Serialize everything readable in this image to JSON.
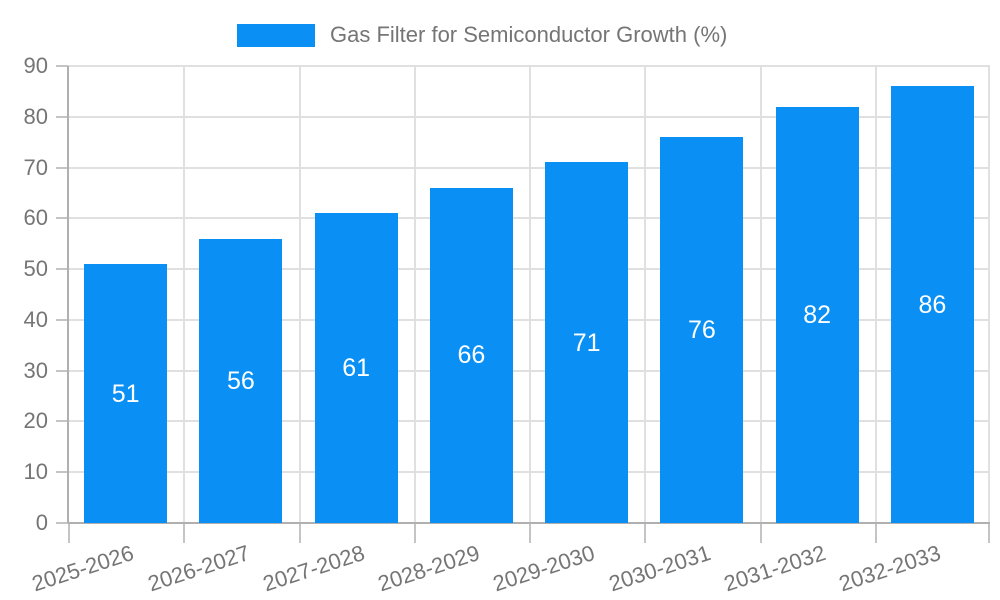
{
  "chart_data": {
    "type": "bar",
    "title": "Gas Filter for Semiconductor Growth (%)",
    "categories": [
      "2025-2026",
      "2026-2027",
      "2027-2028",
      "2028-2029",
      "2029-2030",
      "2030-2031",
      "2031-2032",
      "2032-2033"
    ],
    "values": [
      51,
      56,
      61,
      66,
      71,
      76,
      82,
      86
    ],
    "xlabel": "",
    "ylabel": "",
    "ylim": [
      0,
      90
    ],
    "yticks": [
      0,
      10,
      20,
      30,
      40,
      50,
      60,
      70,
      80,
      90
    ],
    "grid": true,
    "legend_position": "top-center",
    "value_label_position": "inside-middle",
    "colors": {
      "bar": "#0a90f4",
      "value_label": "#ffffff",
      "axis_text": "#757575",
      "grid_line": "#e0e0e0",
      "axis_line": "#b0b0b0",
      "tick": "#c4c4c4",
      "background": "#ffffff"
    }
  }
}
